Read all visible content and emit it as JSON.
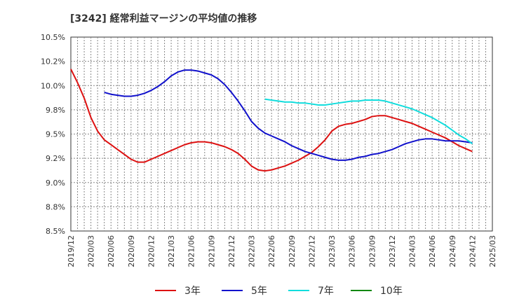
{
  "chart_data": {
    "type": "line",
    "title": "[3242]  経常利益マージンの平均値の推移",
    "xlabel": "",
    "ylabel": "",
    "x_ticks": [
      "2019/12",
      "2020/03",
      "2020/06",
      "2020/09",
      "2020/12",
      "2021/03",
      "2021/06",
      "2021/09",
      "2021/12",
      "2022/03",
      "2022/06",
      "2022/09",
      "2022/12",
      "2023/03",
      "2023/06",
      "2023/09",
      "2023/12",
      "2024/03",
      "2024/06",
      "2024/09",
      "2024/12",
      "2025/03"
    ],
    "y_ticks": [
      "8.5%",
      "8.8%",
      "9.0%",
      "9.2%",
      "9.5%",
      "9.8%",
      "10.0%",
      "10.2%",
      "10.5%"
    ],
    "ylim": [
      8.5,
      10.5
    ],
    "grid": true,
    "legend_position": "bottom",
    "series": [
      {
        "name": "3年",
        "color": "#dd1111",
        "points": [
          [
            "2019/12",
            10.17
          ],
          [
            "2020/01",
            10.03
          ],
          [
            "2020/02",
            9.87
          ],
          [
            "2020/03",
            9.67
          ],
          [
            "2020/04",
            9.53
          ],
          [
            "2020/05",
            9.44
          ],
          [
            "2020/06",
            9.39
          ],
          [
            "2020/07",
            9.34
          ],
          [
            "2020/08",
            9.29
          ],
          [
            "2020/09",
            9.24
          ],
          [
            "2020/10",
            9.21
          ],
          [
            "2020/11",
            9.21
          ],
          [
            "2020/12",
            9.24
          ],
          [
            "2021/01",
            9.27
          ],
          [
            "2021/02",
            9.3
          ],
          [
            "2021/03",
            9.33
          ],
          [
            "2021/04",
            9.36
          ],
          [
            "2021/05",
            9.39
          ],
          [
            "2021/06",
            9.41
          ],
          [
            "2021/07",
            9.42
          ],
          [
            "2021/08",
            9.42
          ],
          [
            "2021/09",
            9.41
          ],
          [
            "2021/10",
            9.39
          ],
          [
            "2021/11",
            9.37
          ],
          [
            "2021/12",
            9.34
          ],
          [
            "2022/01",
            9.3
          ],
          [
            "2022/02",
            9.24
          ],
          [
            "2022/03",
            9.17
          ],
          [
            "2022/04",
            9.13
          ],
          [
            "2022/05",
            9.12
          ],
          [
            "2022/06",
            9.13
          ],
          [
            "2022/07",
            9.15
          ],
          [
            "2022/08",
            9.17
          ],
          [
            "2022/09",
            9.2
          ],
          [
            "2022/10",
            9.23
          ],
          [
            "2022/11",
            9.27
          ],
          [
            "2022/12",
            9.31
          ],
          [
            "2023/01",
            9.37
          ],
          [
            "2023/02",
            9.44
          ],
          [
            "2023/03",
            9.53
          ],
          [
            "2023/04",
            9.58
          ],
          [
            "2023/05",
            9.6
          ],
          [
            "2023/06",
            9.61
          ],
          [
            "2023/07",
            9.63
          ],
          [
            "2023/08",
            9.65
          ],
          [
            "2023/09",
            9.68
          ],
          [
            "2023/10",
            9.69
          ],
          [
            "2023/11",
            9.69
          ],
          [
            "2023/12",
            9.67
          ],
          [
            "2024/01",
            9.65
          ],
          [
            "2024/02",
            9.63
          ],
          [
            "2024/03",
            9.61
          ],
          [
            "2024/04",
            9.58
          ],
          [
            "2024/05",
            9.55
          ],
          [
            "2024/06",
            9.52
          ],
          [
            "2024/07",
            9.49
          ],
          [
            "2024/08",
            9.46
          ],
          [
            "2024/09",
            9.42
          ],
          [
            "2024/10",
            9.38
          ],
          [
            "2024/11",
            9.35
          ],
          [
            "2024/12",
            9.32
          ]
        ]
      },
      {
        "name": "5年",
        "color": "#1111cc",
        "points": [
          [
            "2020/05",
            9.93
          ],
          [
            "2020/06",
            9.91
          ],
          [
            "2020/07",
            9.9
          ],
          [
            "2020/08",
            9.89
          ],
          [
            "2020/09",
            9.89
          ],
          [
            "2020/10",
            9.9
          ],
          [
            "2020/11",
            9.92
          ],
          [
            "2020/12",
            9.95
          ],
          [
            "2021/01",
            9.99
          ],
          [
            "2021/02",
            10.04
          ],
          [
            "2021/03",
            10.1
          ],
          [
            "2021/04",
            10.14
          ],
          [
            "2021/05",
            10.16
          ],
          [
            "2021/06",
            10.16
          ],
          [
            "2021/07",
            10.15
          ],
          [
            "2021/08",
            10.13
          ],
          [
            "2021/09",
            10.11
          ],
          [
            "2021/10",
            10.07
          ],
          [
            "2021/11",
            10.01
          ],
          [
            "2021/12",
            9.93
          ],
          [
            "2022/01",
            9.84
          ],
          [
            "2022/02",
            9.74
          ],
          [
            "2022/03",
            9.63
          ],
          [
            "2022/04",
            9.56
          ],
          [
            "2022/05",
            9.51
          ],
          [
            "2022/06",
            9.48
          ],
          [
            "2022/07",
            9.45
          ],
          [
            "2022/08",
            9.42
          ],
          [
            "2022/09",
            9.38
          ],
          [
            "2022/10",
            9.35
          ],
          [
            "2022/11",
            9.32
          ],
          [
            "2022/12",
            9.3
          ],
          [
            "2023/01",
            9.28
          ],
          [
            "2023/02",
            9.26
          ],
          [
            "2023/03",
            9.24
          ],
          [
            "2023/04",
            9.23
          ],
          [
            "2023/05",
            9.23
          ],
          [
            "2023/06",
            9.24
          ],
          [
            "2023/07",
            9.26
          ],
          [
            "2023/08",
            9.27
          ],
          [
            "2023/09",
            9.29
          ],
          [
            "2023/10",
            9.3
          ],
          [
            "2023/11",
            9.32
          ],
          [
            "2023/12",
            9.34
          ],
          [
            "2024/01",
            9.37
          ],
          [
            "2024/02",
            9.4
          ],
          [
            "2024/03",
            9.42
          ],
          [
            "2024/04",
            9.44
          ],
          [
            "2024/05",
            9.45
          ],
          [
            "2024/06",
            9.45
          ],
          [
            "2024/07",
            9.44
          ],
          [
            "2024/08",
            9.43
          ],
          [
            "2024/09",
            9.43
          ],
          [
            "2024/10",
            9.43
          ],
          [
            "2024/11",
            9.42
          ],
          [
            "2024/12",
            9.41
          ]
        ]
      },
      {
        "name": "7年",
        "color": "#11dddd",
        "points": [
          [
            "2022/05",
            9.86
          ],
          [
            "2022/06",
            9.85
          ],
          [
            "2022/07",
            9.84
          ],
          [
            "2022/08",
            9.83
          ],
          [
            "2022/09",
            9.83
          ],
          [
            "2022/10",
            9.82
          ],
          [
            "2022/11",
            9.82
          ],
          [
            "2022/12",
            9.81
          ],
          [
            "2023/01",
            9.8
          ],
          [
            "2023/02",
            9.8
          ],
          [
            "2023/03",
            9.81
          ],
          [
            "2023/04",
            9.82
          ],
          [
            "2023/05",
            9.83
          ],
          [
            "2023/06",
            9.84
          ],
          [
            "2023/07",
            9.84
          ],
          [
            "2023/08",
            9.85
          ],
          [
            "2023/09",
            9.85
          ],
          [
            "2023/10",
            9.85
          ],
          [
            "2023/11",
            9.84
          ],
          [
            "2023/12",
            9.82
          ],
          [
            "2024/01",
            9.8
          ],
          [
            "2024/02",
            9.78
          ],
          [
            "2024/03",
            9.76
          ],
          [
            "2024/04",
            9.73
          ],
          [
            "2024/05",
            9.7
          ],
          [
            "2024/06",
            9.67
          ],
          [
            "2024/07",
            9.63
          ],
          [
            "2024/08",
            9.59
          ],
          [
            "2024/09",
            9.54
          ],
          [
            "2024/10",
            9.49
          ],
          [
            "2024/11",
            9.45
          ],
          [
            "2024/12",
            9.4
          ]
        ]
      },
      {
        "name": "10年",
        "color": "#118811",
        "points": []
      }
    ]
  }
}
